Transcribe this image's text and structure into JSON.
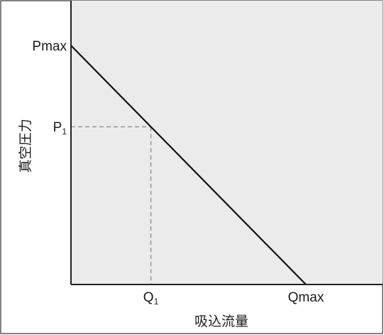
{
  "chart_data": {
    "type": "line",
    "title": "",
    "xlabel": "吸込流量",
    "ylabel": "真空圧力",
    "x_ticks": [
      {
        "label": "Q",
        "sub": "1",
        "value": 0.34
      },
      {
        "label": "Qmax",
        "sub": "",
        "value": 1.0
      }
    ],
    "y_ticks": [
      {
        "label": "Pmax",
        "sub": "",
        "value": 1.0
      },
      {
        "label": "P",
        "sub": "1",
        "value": 0.66
      }
    ],
    "xlim": [
      0,
      1.0
    ],
    "ylim": [
      0,
      1.0
    ],
    "grid": false,
    "series": [
      {
        "x": [
          0,
          1.0
        ],
        "y": [
          1.0,
          0
        ]
      }
    ],
    "reference_point": {
      "x": 0.34,
      "y": 0.66
    },
    "colors": {
      "plot_bg": "#ebebeb",
      "line": "#111111",
      "guide": "#888888",
      "axis": "#222222",
      "frame": "#333333"
    }
  }
}
